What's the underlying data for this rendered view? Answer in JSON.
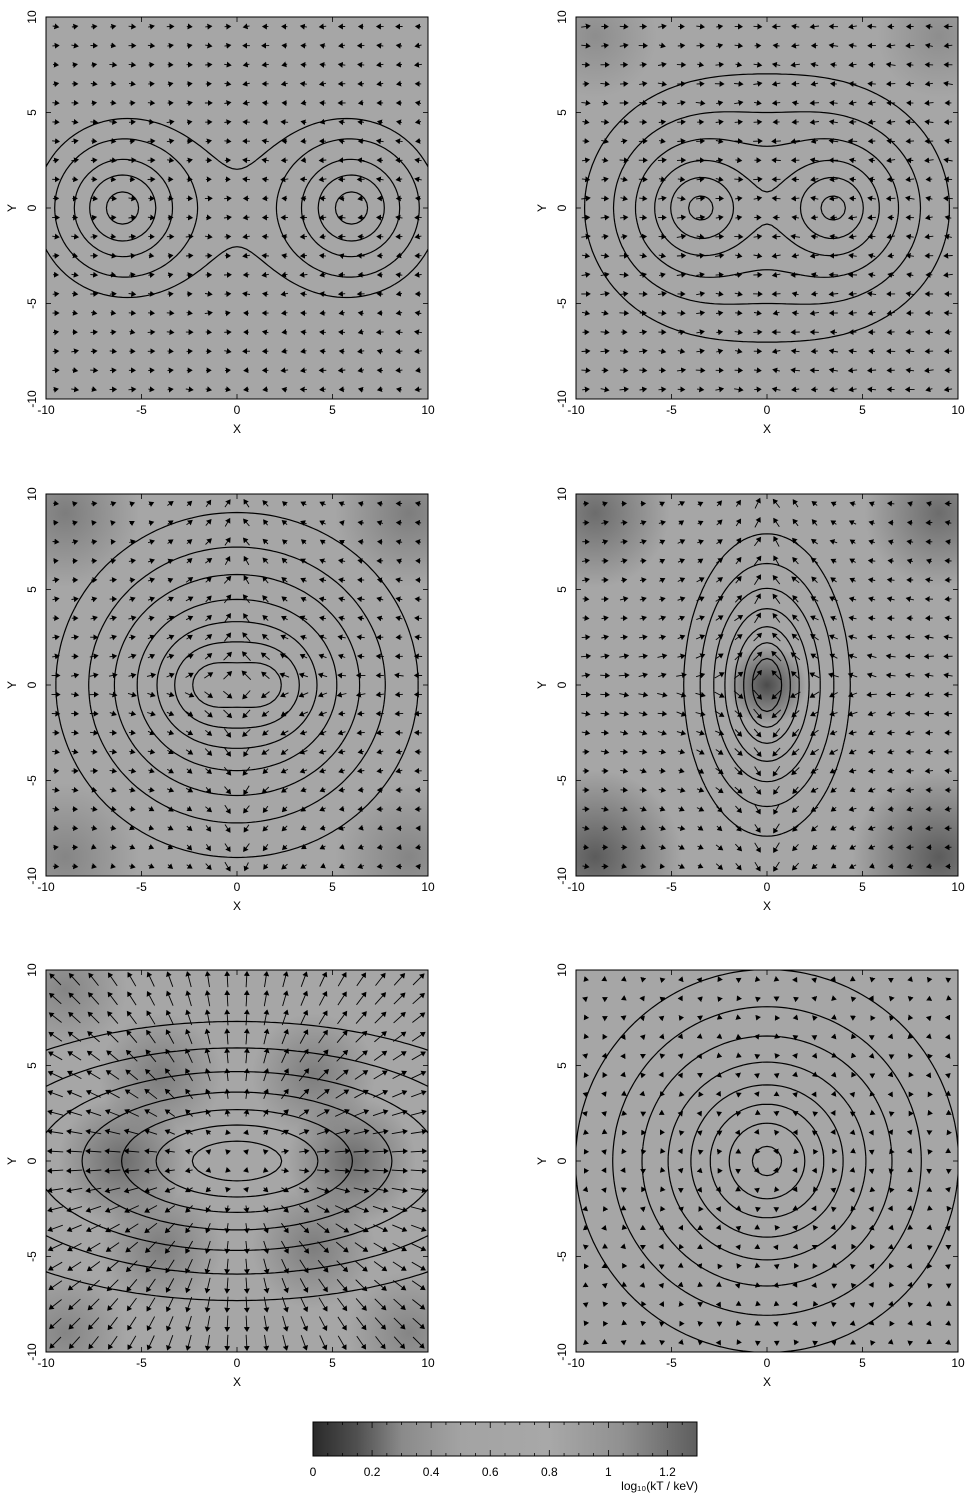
{
  "figure": {
    "colorbar": {
      "label": "log₁₀(kT / keV)",
      "ticks": [
        0,
        0.2,
        0.4,
        0.6,
        0.8,
        1,
        1.2
      ],
      "range": [
        0,
        1.3
      ],
      "stops": [
        {
          "v": 0.0,
          "color": "#2a2a2a"
        },
        {
          "v": 0.15,
          "color": "#505050"
        },
        {
          "v": 0.3,
          "color": "#8a8a8a"
        },
        {
          "v": 0.5,
          "color": "#a3a3a3"
        },
        {
          "v": 0.8,
          "color": "#a8a8a8"
        },
        {
          "v": 1.05,
          "color": "#909090"
        },
        {
          "v": 1.3,
          "color": "#5e5e5e"
        }
      ]
    }
  },
  "chart_data": [
    {
      "type": "vector-contour",
      "xlabel": "X",
      "ylabel": "Y",
      "xlim": [
        -10,
        10
      ],
      "ylim": [
        -10,
        10
      ],
      "xticks": [
        -10,
        -5,
        0,
        5,
        10
      ],
      "yticks": [
        -10,
        -5,
        0,
        5,
        10
      ],
      "background_color": "#a6a6a6",
      "darkening": [],
      "clumps": [
        {
          "x": -6,
          "y": 0,
          "m": 1
        },
        {
          "x": 6,
          "y": 0,
          "m": 1
        }
      ],
      "contour_levels": [
        0.12,
        0.18,
        0.3,
        0.48,
        0.8,
        1.3,
        2.2
      ],
      "contour_scale": 1.6,
      "flow": "converge-x",
      "arrow_scale": 0.6
    },
    {
      "type": "vector-contour",
      "xlabel": "X",
      "ylabel": "Y",
      "xlim": [
        -10,
        10
      ],
      "ylim": [
        -10,
        10
      ],
      "xticks": [
        -10,
        -5,
        0,
        5,
        10
      ],
      "yticks": [
        -10,
        -5,
        0,
        5,
        10
      ],
      "background_color": "#a6a6a6",
      "darkening": [
        {
          "x": -9,
          "y": 9,
          "r": 2.5,
          "a": 0.15
        },
        {
          "x": 9,
          "y": 9,
          "r": 2.5,
          "a": 0.15
        }
      ],
      "clumps": [
        {
          "x": -3.5,
          "y": 0,
          "m": 1
        },
        {
          "x": 3.5,
          "y": 0,
          "m": 1
        }
      ],
      "contour_levels": [
        0.1,
        0.16,
        0.25,
        0.4,
        0.62,
        0.95,
        1.5,
        2.4
      ],
      "contour_scale": 1.8,
      "flow": "converge-x",
      "arrow_scale": 0.75
    },
    {
      "type": "vector-contour",
      "xlabel": "X",
      "ylabel": "Y",
      "xlim": [
        -10,
        10
      ],
      "ylim": [
        -10,
        10
      ],
      "xticks": [
        -10,
        -5,
        0,
        5,
        10
      ],
      "yticks": [
        -10,
        -5,
        0,
        5,
        10
      ],
      "background_color": "#a6a6a6",
      "darkening": [
        {
          "x": -9,
          "y": 9,
          "r": 3,
          "a": 0.25
        },
        {
          "x": 9,
          "y": 9,
          "r": 3,
          "a": 0.25
        },
        {
          "x": -9,
          "y": -9,
          "r": 3,
          "a": 0.2
        },
        {
          "x": 9,
          "y": -9,
          "r": 3,
          "a": 0.2
        }
      ],
      "clumps": [
        {
          "x": -1.5,
          "y": 0,
          "m": 1
        },
        {
          "x": 1.5,
          "y": 0,
          "m": 1
        }
      ],
      "contour_levels": [
        0.1,
        0.15,
        0.22,
        0.33,
        0.5,
        0.75,
        1.1,
        1.7
      ],
      "contour_scale": 2.1,
      "flow": "converge-x-eject-y",
      "arrow_scale": 0.85
    },
    {
      "type": "vector-contour",
      "xlabel": "X",
      "ylabel": "Y",
      "xlim": [
        -10,
        10
      ],
      "ylim": [
        -10,
        10
      ],
      "xticks": [
        -10,
        -5,
        0,
        5,
        10
      ],
      "yticks": [
        -10,
        -5,
        0,
        5,
        10
      ],
      "background_color": "#a6a6a6",
      "darkening": [
        {
          "x": 0,
          "y": 0,
          "r": 1.6,
          "a": 0.55
        },
        {
          "x": -9,
          "y": 9,
          "r": 3,
          "a": 0.35
        },
        {
          "x": 9,
          "y": 9,
          "r": 3,
          "a": 0.35
        },
        {
          "x": -9,
          "y": -9,
          "r": 3.5,
          "a": 0.45
        },
        {
          "x": 9,
          "y": -9,
          "r": 3.5,
          "a": 0.45
        }
      ],
      "clumps": [
        {
          "x": 0,
          "y": 0,
          "m": 2,
          "sx": 0.55,
          "sy": 1.0
        }
      ],
      "contour_levels": [
        0.12,
        0.18,
        0.27,
        0.4,
        0.6,
        0.9,
        1.35,
        2.1,
        3.4
      ],
      "contour_scale": 2.0,
      "flow": "converge-x-eject-y",
      "arrow_scale": 0.95
    },
    {
      "type": "vector-contour",
      "xlabel": "X",
      "ylabel": "Y",
      "xlim": [
        -10,
        10
      ],
      "ylim": [
        -10,
        10
      ],
      "xticks": [
        -10,
        -5,
        0,
        5,
        10
      ],
      "yticks": [
        -10,
        -5,
        0,
        5,
        10
      ],
      "background_color": "#a6a6a6",
      "darkening": [
        {
          "x": -6,
          "y": 0,
          "r": 2.6,
          "a": 0.35
        },
        {
          "x": 6,
          "y": 0,
          "r": 2.6,
          "a": 0.35
        },
        {
          "x": -4,
          "y": 4.5,
          "r": 2.5,
          "a": 0.25
        },
        {
          "x": 4,
          "y": 4.5,
          "r": 2.5,
          "a": 0.25
        },
        {
          "x": -4,
          "y": -4.5,
          "r": 2.5,
          "a": 0.25
        },
        {
          "x": 4,
          "y": -4.5,
          "r": 2.5,
          "a": 0.25
        },
        {
          "x": -9,
          "y": 9,
          "r": 2.5,
          "a": 0.2
        },
        {
          "x": -9,
          "y": -9,
          "r": 2.5,
          "a": 0.2
        },
        {
          "x": 9,
          "y": -9,
          "r": 2.5,
          "a": 0.2
        }
      ],
      "clumps": [
        {
          "x": 0,
          "y": 0,
          "m": 2,
          "sx": 1.8,
          "sy": 0.8
        }
      ],
      "contour_levels": [
        0.15,
        0.22,
        0.33,
        0.5,
        0.75,
        1.1,
        1.6
      ],
      "contour_scale": 2.6,
      "flow": "radial-out",
      "arrow_scale": 1.2
    },
    {
      "type": "vector-contour",
      "xlabel": "X",
      "ylabel": "Y",
      "xlim": [
        -10,
        10
      ],
      "ylim": [
        -10,
        10
      ],
      "xticks": [
        -10,
        -5,
        0,
        5,
        10
      ],
      "yticks": [
        -10,
        -5,
        0,
        5,
        10
      ],
      "background_color": "#a6a6a6",
      "darkening": [],
      "clumps": [
        {
          "x": 0,
          "y": 0,
          "m": 2
        }
      ],
      "contour_levels": [
        0.1,
        0.15,
        0.22,
        0.33,
        0.5,
        0.75,
        1.15,
        1.8,
        2.8
      ],
      "contour_scale": 2.3,
      "flow": "weak-random",
      "arrow_scale": 0.4
    }
  ]
}
